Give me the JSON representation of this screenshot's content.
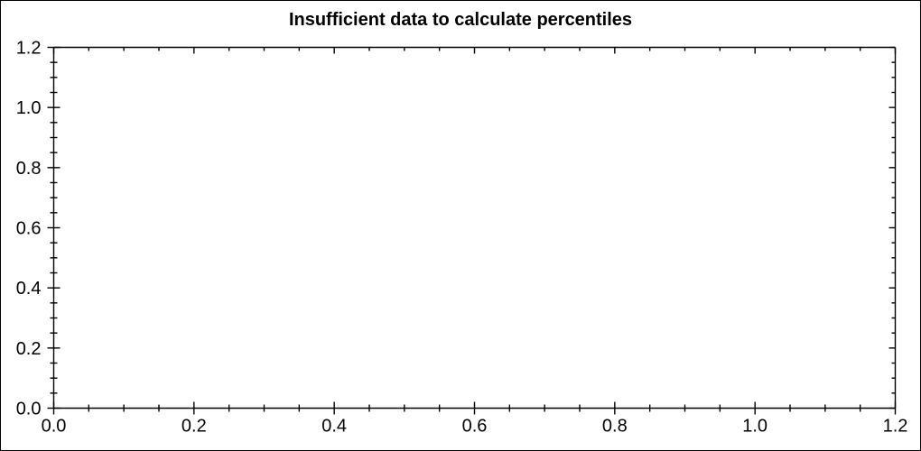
{
  "figure": {
    "background_color": "#ffffff",
    "border_color": "#000000",
    "axis_color": "#000000",
    "text_color": "#000000"
  },
  "chart_data": {
    "type": "scatter",
    "title": "Insufficient data to calculate percentiles",
    "series": [],
    "points": [],
    "xlabel": "",
    "ylabel": "",
    "xlim": [
      0.0,
      1.2
    ],
    "ylim": [
      0.0,
      1.2
    ],
    "x_major_ticks": [
      0.0,
      0.2,
      0.4,
      0.6,
      0.8,
      1.0,
      1.2
    ],
    "y_major_ticks": [
      0.0,
      0.2,
      0.4,
      0.6,
      0.8,
      1.0,
      1.2
    ],
    "x_tick_labels": [
      "0.0",
      "0.2",
      "0.4",
      "0.6",
      "0.8",
      "1.0",
      "1.2"
    ],
    "y_tick_labels": [
      "0.0",
      "0.2",
      "0.4",
      "0.6",
      "0.8",
      "1.0",
      "1.2"
    ],
    "minor_tick_step": 0.05,
    "grid": false,
    "legend": false
  }
}
